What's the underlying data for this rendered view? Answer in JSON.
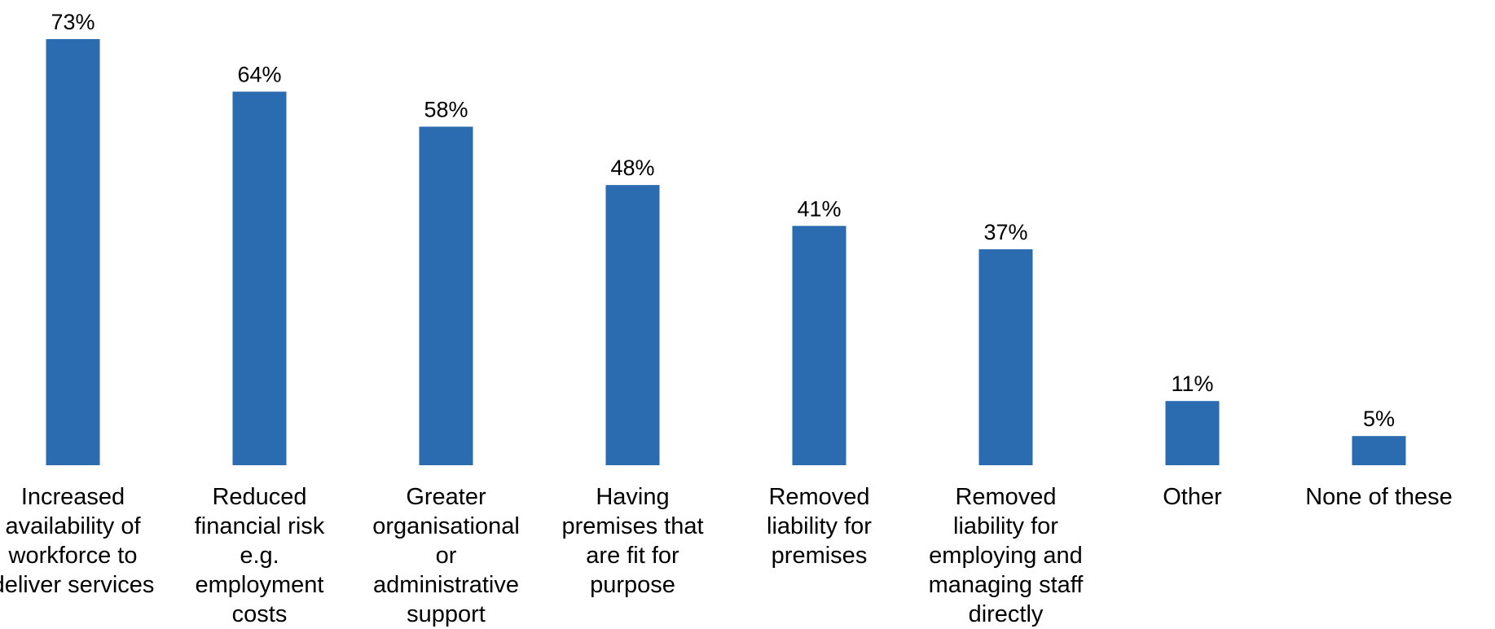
{
  "chart_data": {
    "type": "bar",
    "categories": [
      [
        "Increased",
        "availability of",
        "workforce to",
        "deliver services"
      ],
      [
        "Reduced",
        "financial risk",
        "e.g.",
        "employment",
        "costs"
      ],
      [
        "Greater",
        "organisational",
        "or",
        "administrative",
        "support"
      ],
      [
        "Having",
        "premises that",
        "are fit for",
        "purpose"
      ],
      [
        "Removed",
        "liability for",
        "premises"
      ],
      [
        "Removed",
        "liability for",
        "employing and",
        "managing staff",
        "directly"
      ],
      [
        "Other"
      ],
      [
        "None of these"
      ]
    ],
    "values": [
      73,
      64,
      58,
      48,
      41,
      37,
      11,
      5
    ],
    "data_labels": [
      "73%",
      "64%",
      "58%",
      "48%",
      "41%",
      "37%",
      "11%",
      "5%"
    ],
    "ylim": [
      0,
      73
    ],
    "grid": false,
    "legend": "none",
    "bar_color": "#2B6BAF"
  }
}
